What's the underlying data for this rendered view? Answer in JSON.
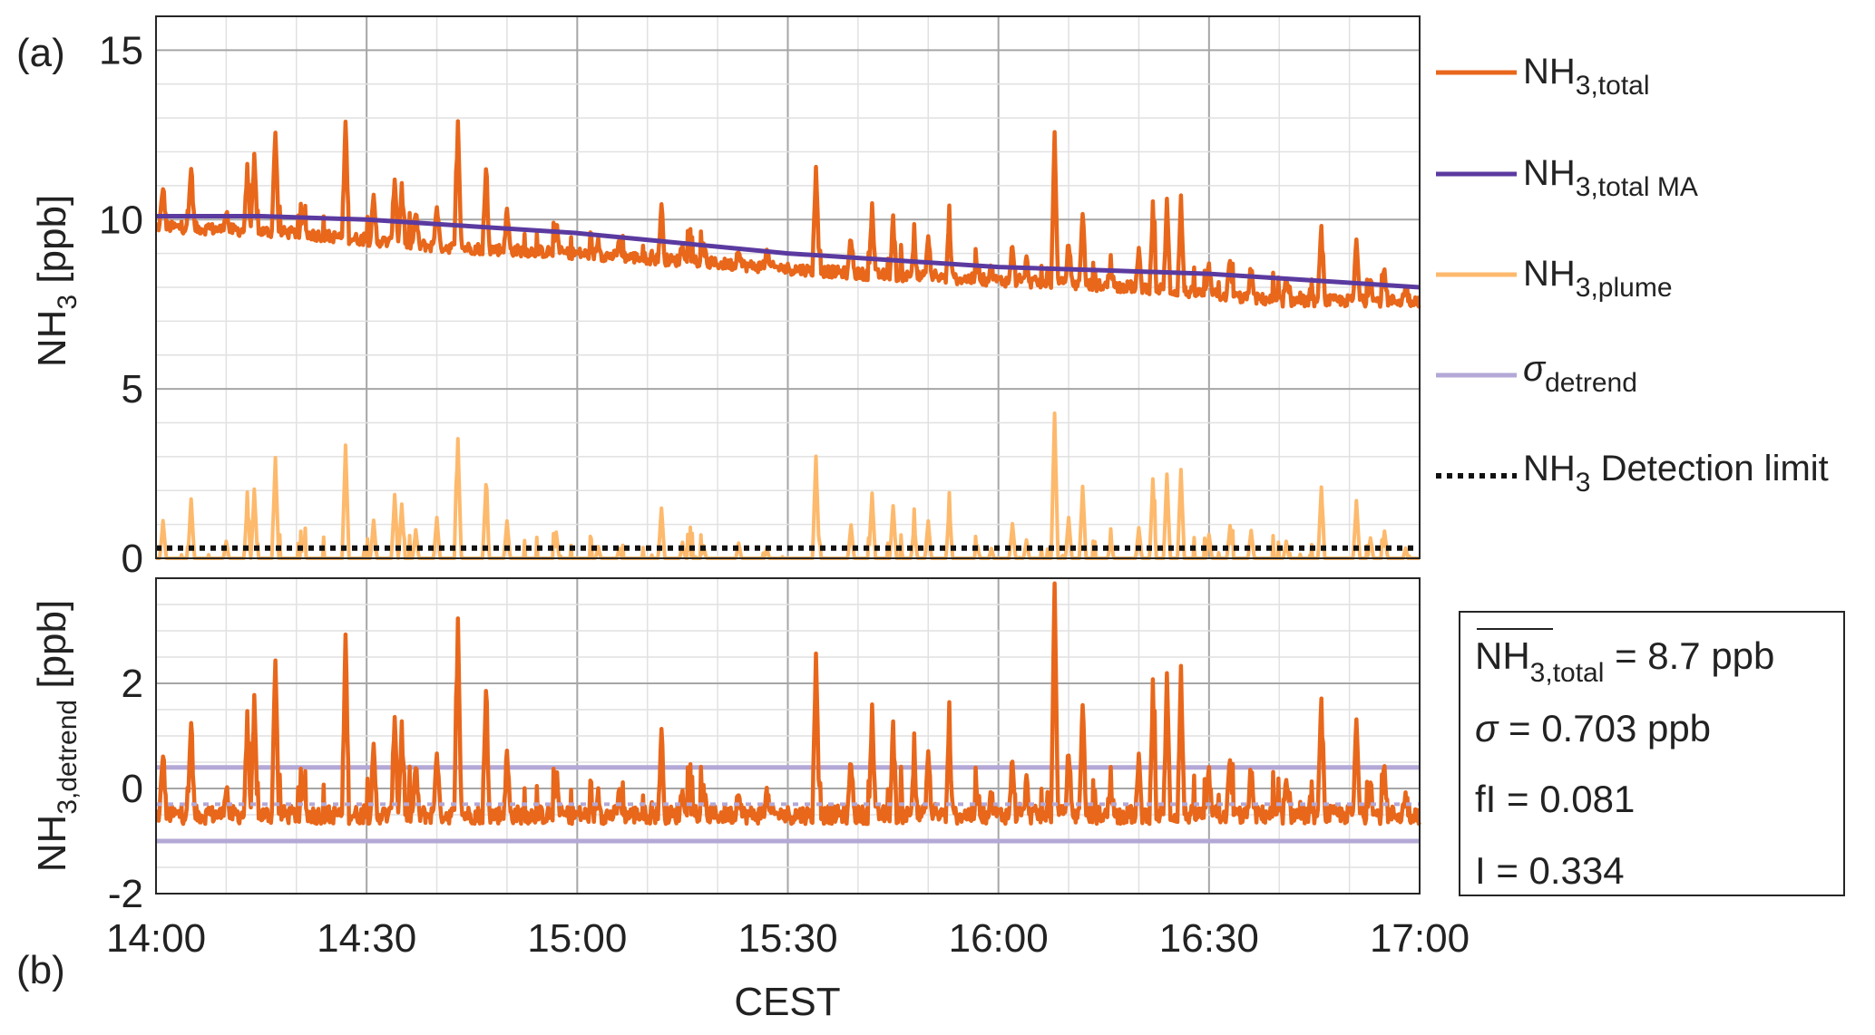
{
  "chart_data": [
    {
      "panel_label": "(a)",
      "type": "line",
      "ylabel": {
        "main": "NH",
        "sub": "3",
        "tail": " [ppb]"
      },
      "ylim": [
        0,
        16
      ],
      "yticks": [
        0,
        5,
        10,
        15
      ],
      "xlim": [
        "14:00",
        "17:00"
      ],
      "grid": true,
      "legend_position": "right",
      "legend": [
        {
          "main": "NH",
          "sub": "3,total",
          "tail": ""
        },
        {
          "main": "NH",
          "sub": "3,total MA",
          "tail": ""
        },
        {
          "main": "NH",
          "sub": "3,plume",
          "tail": ""
        },
        {
          "main": "σ",
          "sub": "detrend",
          "tail": ""
        },
        {
          "main": "NH",
          "sub": "3",
          "tail": " Detection limit"
        }
      ],
      "colors": {
        "total": "#e8671b",
        "ma": "#5b3aa0",
        "plume": "#fdb96c",
        "sigma": "#b3a8d6",
        "detection": "#111111"
      },
      "series": [
        {
          "key": "total",
          "baseline": {
            "x": [
              "14:00",
              "14:20",
              "14:40",
              "15:00",
              "15:20",
              "15:40",
              "16:00",
              "16:20",
              "16:40",
              "17:00"
            ],
            "y": [
              9.8,
              9.6,
              9.2,
              9.0,
              8.7,
              8.4,
              8.2,
              8.0,
              7.6,
              7.6
            ]
          }
        },
        {
          "key": "ma",
          "x": [
            "14:00",
            "14:15",
            "14:30",
            "14:45",
            "15:00",
            "15:15",
            "15:30",
            "15:45",
            "16:00",
            "16:15",
            "16:30",
            "16:45",
            "17:00"
          ],
          "y": [
            10.1,
            10.1,
            10.0,
            9.8,
            9.6,
            9.3,
            9.0,
            8.8,
            8.6,
            8.5,
            8.4,
            8.2,
            8.0
          ]
        },
        {
          "key": "plume"
        },
        {
          "key": "detection",
          "y": 0.3
        }
      ],
      "spikes": [
        {
          "x": "14:01",
          "y": 11.0
        },
        {
          "x": "14:05",
          "y": 11.6
        },
        {
          "x": "14:10",
          "y": 10.3
        },
        {
          "x": "14:13",
          "y": 11.4
        },
        {
          "x": "14:14",
          "y": 11.8
        },
        {
          "x": "14:17",
          "y": 12.7
        },
        {
          "x": "14:21",
          "y": 10.2
        },
        {
          "x": "14:27",
          "y": 12.9
        },
        {
          "x": "14:31",
          "y": 10.6
        },
        {
          "x": "14:34",
          "y": 11.3
        },
        {
          "x": "14:35",
          "y": 11.0
        },
        {
          "x": "14:37",
          "y": 10.2
        },
        {
          "x": "14:40",
          "y": 10.5
        },
        {
          "x": "14:43",
          "y": 12.8
        },
        {
          "x": "14:47",
          "y": 11.4
        },
        {
          "x": "14:50",
          "y": 10.3
        },
        {
          "x": "14:57",
          "y": 9.9
        },
        {
          "x": "15:03",
          "y": 9.4
        },
        {
          "x": "15:06",
          "y": 9.3
        },
        {
          "x": "15:12",
          "y": 10.4
        },
        {
          "x": "15:15",
          "y": 9.3
        },
        {
          "x": "15:16",
          "y": 9.1
        },
        {
          "x": "15:18",
          "y": 9.2
        },
        {
          "x": "15:23",
          "y": 9.2
        },
        {
          "x": "15:27",
          "y": 9.0
        },
        {
          "x": "15:34",
          "y": 11.6
        },
        {
          "x": "15:39",
          "y": 9.5
        },
        {
          "x": "15:42",
          "y": 10.4
        },
        {
          "x": "15:45",
          "y": 10.0
        },
        {
          "x": "15:48",
          "y": 9.4
        },
        {
          "x": "15:50",
          "y": 9.5
        },
        {
          "x": "15:53",
          "y": 9.9
        },
        {
          "x": "15:57",
          "y": 8.7
        },
        {
          "x": "15:59",
          "y": 8.6
        },
        {
          "x": "16:02",
          "y": 9.3
        },
        {
          "x": "16:04",
          "y": 8.8
        },
        {
          "x": "16:08",
          "y": 12.5
        },
        {
          "x": "16:10",
          "y": 9.4
        },
        {
          "x": "16:12",
          "y": 10.3
        },
        {
          "x": "16:16",
          "y": 8.7
        },
        {
          "x": "16:20",
          "y": 9.0
        },
        {
          "x": "16:22",
          "y": 10.4
        },
        {
          "x": "16:24",
          "y": 10.5
        },
        {
          "x": "16:26",
          "y": 10.6
        },
        {
          "x": "16:30",
          "y": 8.6
        },
        {
          "x": "16:33",
          "y": 8.8
        },
        {
          "x": "16:36",
          "y": 8.6
        },
        {
          "x": "16:41",
          "y": 8.2
        },
        {
          "x": "16:46",
          "y": 9.8
        },
        {
          "x": "16:51",
          "y": 9.4
        },
        {
          "x": "16:53",
          "y": 8.3
        },
        {
          "x": "16:55",
          "y": 8.5
        },
        {
          "x": "16:58",
          "y": 8.0
        }
      ]
    },
    {
      "panel_label": "(b)",
      "type": "line",
      "ylabel": {
        "main": "NH",
        "sub": "3,detrend",
        "tail": " [ppb]"
      },
      "xlabel": "CEST",
      "ylim": [
        -2,
        4
      ],
      "yticks": [
        -2,
        0,
        2
      ],
      "xticks": [
        "14:00",
        "14:30",
        "15:00",
        "15:30",
        "16:00",
        "16:30",
        "17:00"
      ],
      "grid": true,
      "sigma_lines": {
        "upper": 0.4,
        "lower": -1.0,
        "mean_dotted": -0.3
      },
      "baseline_level": -0.5,
      "spike_scale": 1.0
    }
  ],
  "stats": {
    "mean": {
      "main": "NH",
      "sub": "3,total",
      "tail": " = 8.7 ppb"
    },
    "sigma": {
      "main": "σ",
      "tail": " = 0.703 ppb"
    },
    "fi": "fI = 0.081",
    "i": "I = 0.334"
  }
}
